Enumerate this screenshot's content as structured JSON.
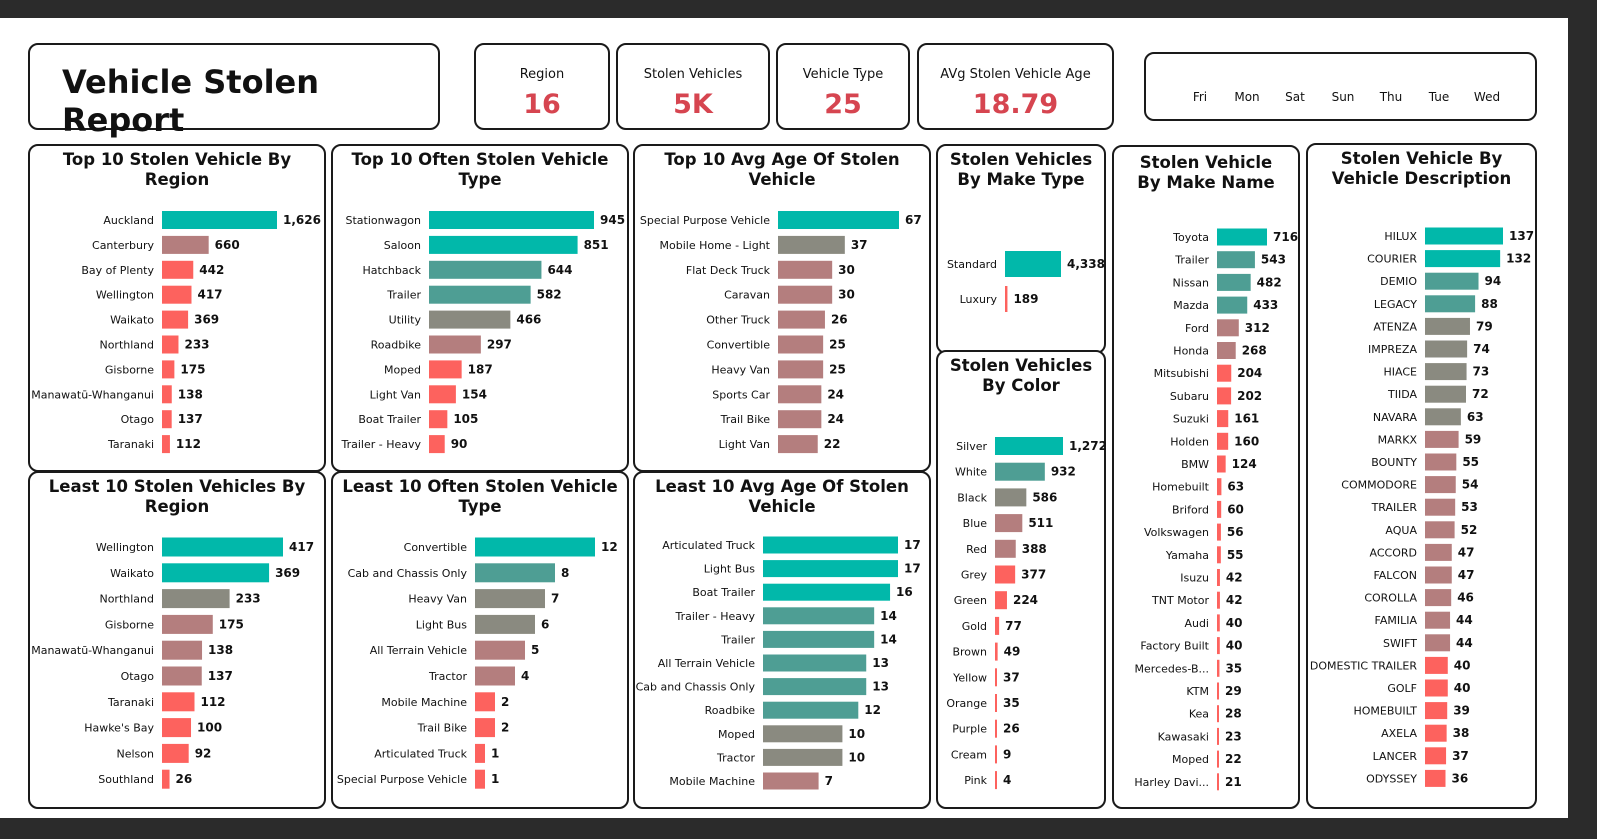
{
  "header": {
    "title": "Vehicle Stolen Report"
  },
  "kpis": [
    {
      "label": "Region",
      "value": "16"
    },
    {
      "label": "Stolen Vehicles",
      "value": "5K"
    },
    {
      "label": "Vehicle Type",
      "value": "25"
    },
    {
      "label": "AVg Stolen Vehicle Age",
      "value": "18.79"
    }
  ],
  "day_slicer": [
    "Fri",
    "Mon",
    "Sat",
    "Sun",
    "Thu",
    "Tue",
    "Wed"
  ],
  "colors": {
    "high": "#01b8aa",
    "mid_teal": "#4e9e94",
    "mid_grey": "#8a8a80",
    "mid_mauve": "#b47e7e",
    "low": "#fd625e",
    "kpi_value": "#d64550"
  },
  "chart_data": [
    {
      "id": "top-region",
      "type": "bar",
      "orientation": "horizontal",
      "title": "Top 10 Stolen Vehicle By Region",
      "categories": [
        "Auckland",
        "Canterbury",
        "Bay of Plenty",
        "Wellington",
        "Waikato",
        "Northland",
        "Gisborne",
        "Manawatū-Whanganui",
        "Otago",
        "Taranaki"
      ],
      "values": [
        1626,
        660,
        442,
        417,
        369,
        233,
        175,
        138,
        137,
        112
      ],
      "value_labels": [
        "1,626",
        "660",
        "442",
        "417",
        "369",
        "233",
        "175",
        "138",
        "137",
        "112"
      ]
    },
    {
      "id": "top-type",
      "type": "bar",
      "orientation": "horizontal",
      "title": "Top 10 Often Stolen Vehicle Type",
      "categories": [
        "Stationwagon",
        "Saloon",
        "Hatchback",
        "Trailer",
        "Utility",
        "Roadbike",
        "Moped",
        "Light Van",
        "Boat Trailer",
        "Trailer - Heavy"
      ],
      "values": [
        945,
        851,
        644,
        582,
        466,
        297,
        187,
        154,
        105,
        90
      ],
      "value_labels": [
        "945",
        "851",
        "644",
        "582",
        "466",
        "297",
        "187",
        "154",
        "105",
        "90"
      ]
    },
    {
      "id": "top-age",
      "type": "bar",
      "orientation": "horizontal",
      "title": "Top 10 Avg Age Of Stolen Vehicle",
      "categories": [
        "Special Purpose Vehicle",
        "Mobile Home - Light",
        "Flat Deck Truck",
        "Caravan",
        "Other Truck",
        "Convertible",
        "Heavy Van",
        "Sports Car",
        "Trail Bike",
        "Light Van"
      ],
      "values": [
        67,
        37,
        30,
        30,
        26,
        25,
        25,
        24,
        24,
        22
      ],
      "value_labels": [
        "67",
        "37",
        "30",
        "30",
        "26",
        "25",
        "25",
        "24",
        "24",
        "22"
      ]
    },
    {
      "id": "make-type",
      "type": "bar",
      "orientation": "horizontal",
      "title": "Stolen Vehicles By Make Type",
      "categories": [
        "Standard",
        "Luxury"
      ],
      "values": [
        4338,
        189
      ],
      "value_labels": [
        "4,338",
        "189"
      ]
    },
    {
      "id": "color",
      "type": "bar",
      "orientation": "horizontal",
      "title": "Stolen Vehicles By Color",
      "categories": [
        "Silver",
        "White",
        "Black",
        "Blue",
        "Red",
        "Grey",
        "Green",
        "Gold",
        "Brown",
        "Yellow",
        "Orange",
        "Purple",
        "Cream",
        "Pink"
      ],
      "values": [
        1272,
        932,
        586,
        511,
        388,
        377,
        224,
        77,
        49,
        37,
        35,
        26,
        9,
        4
      ],
      "value_labels": [
        "1,272",
        "932",
        "586",
        "511",
        "388",
        "377",
        "224",
        "77",
        "49",
        "37",
        "35",
        "26",
        "9",
        "4"
      ]
    },
    {
      "id": "make-name",
      "type": "bar",
      "orientation": "horizontal",
      "title": "Stolen Vehicle By Make Name",
      "categories": [
        "Toyota",
        "Trailer",
        "Nissan",
        "Mazda",
        "Ford",
        "Honda",
        "Mitsubishi",
        "Subaru",
        "Suzuki",
        "Holden",
        "BMW",
        "Homebuilt",
        "Briford",
        "Volkswagen",
        "Yamaha",
        "Isuzu",
        "TNT Motor",
        "Audi",
        "Factory Built",
        "Mercedes-B...",
        "KTM",
        "Kea",
        "Kawasaki",
        "Moped",
        "Harley Davi..."
      ],
      "values": [
        716,
        543,
        482,
        433,
        312,
        268,
        204,
        202,
        161,
        160,
        124,
        63,
        60,
        56,
        55,
        42,
        42,
        40,
        40,
        35,
        29,
        28,
        23,
        22,
        21
      ],
      "value_labels": [
        "716",
        "543",
        "482",
        "433",
        "312",
        "268",
        "204",
        "202",
        "161",
        "160",
        "124",
        "63",
        "60",
        "56",
        "55",
        "42",
        "42",
        "40",
        "40",
        "35",
        "29",
        "28",
        "23",
        "22",
        "21"
      ]
    },
    {
      "id": "description",
      "type": "bar",
      "orientation": "horizontal",
      "title": "Stolen Vehicle By Vehicle Description",
      "categories": [
        "HILUX",
        "COURIER",
        "DEMIO",
        "LEGACY",
        "ATENZA",
        "IMPREZA",
        "HIACE",
        "TIIDA",
        "NAVARA",
        "MARKX",
        "BOUNTY",
        "COMMODORE",
        "TRAILER",
        "AQUA",
        "ACCORD",
        "FALCON",
        "COROLLA",
        "FAMILIA",
        "SWIFT",
        "DOMESTIC TRAILER",
        "GOLF",
        "HOMEBUILT",
        "AXELA",
        "LANCER",
        "ODYSSEY"
      ],
      "values": [
        137,
        132,
        94,
        88,
        79,
        74,
        73,
        72,
        63,
        59,
        55,
        54,
        53,
        52,
        47,
        47,
        46,
        44,
        44,
        40,
        40,
        39,
        38,
        37,
        36
      ],
      "value_labels": [
        "137",
        "132",
        "94",
        "88",
        "79",
        "74",
        "73",
        "72",
        "63",
        "59",
        "55",
        "54",
        "53",
        "52",
        "47",
        "47",
        "46",
        "44",
        "44",
        "40",
        "40",
        "39",
        "38",
        "37",
        "36"
      ]
    },
    {
      "id": "least-region",
      "type": "bar",
      "orientation": "horizontal",
      "title": "Least 10 Stolen Vehicles By Region",
      "categories": [
        "Wellington",
        "Waikato",
        "Northland",
        "Gisborne",
        "Manawatū-Whanganui",
        "Otago",
        "Taranaki",
        "Hawke's Bay",
        "Nelson",
        "Southland"
      ],
      "values": [
        417,
        369,
        233,
        175,
        138,
        137,
        112,
        100,
        92,
        26
      ],
      "value_labels": [
        "417",
        "369",
        "233",
        "175",
        "138",
        "137",
        "112",
        "100",
        "92",
        "26"
      ]
    },
    {
      "id": "least-type",
      "type": "bar",
      "orientation": "horizontal",
      "title": "Least 10 Often Stolen Vehicle Type",
      "categories": [
        "Convertible",
        "Cab and Chassis Only",
        "Heavy Van",
        "Light Bus",
        "All Terrain Vehicle",
        "Tractor",
        "Mobile Machine",
        "Trail Bike",
        "Articulated Truck",
        "Special Purpose Vehicle"
      ],
      "values": [
        12,
        8,
        7,
        6,
        5,
        4,
        2,
        2,
        1,
        1
      ],
      "value_labels": [
        "12",
        "8",
        "7",
        "6",
        "5",
        "4",
        "2",
        "2",
        "1",
        "1"
      ]
    },
    {
      "id": "least-age",
      "type": "bar",
      "orientation": "horizontal",
      "title": "Least 10 Avg Age Of Stolen Vehicle",
      "categories": [
        "Articulated Truck",
        "Light Bus",
        "Boat Trailer",
        "Trailer - Heavy",
        "Trailer",
        "All Terrain Vehicle",
        "Cab and Chassis Only",
        "Roadbike",
        "Moped",
        "Tractor",
        "Mobile Machine"
      ],
      "values": [
        17,
        17,
        16,
        14,
        14,
        13,
        13,
        12,
        10,
        10,
        7
      ],
      "value_labels": [
        "17",
        "17",
        "16",
        "14",
        "14",
        "13",
        "13",
        "12",
        "10",
        "10",
        "7"
      ]
    }
  ]
}
